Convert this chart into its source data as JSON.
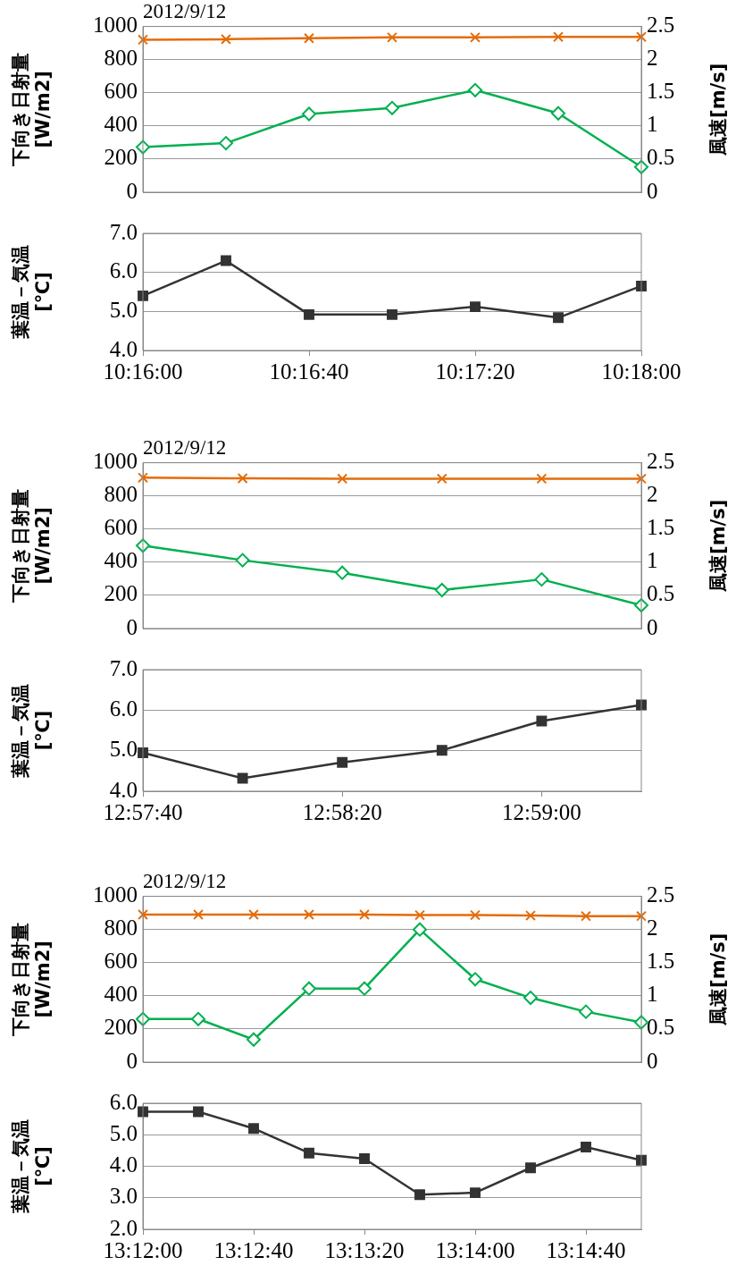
{
  "chart_data": [
    {
      "type": "line",
      "title": "2012/9/12",
      "ylabel": "下向き日射量\n[W/m2]",
      "y2label": "風速[m/s]",
      "categories": [
        null,
        null,
        null,
        null,
        null,
        null,
        null
      ],
      "ylim": [
        0,
        1000
      ],
      "yticks": [
        0,
        200,
        400,
        600,
        800,
        1000
      ],
      "y2lim": [
        0,
        2.5
      ],
      "y2ticks": [
        0,
        0.5,
        1,
        1.5,
        2,
        2.5
      ],
      "grid": "y",
      "tick_labels": "y",
      "series": [
        {
          "color": "#e46c0a",
          "marker": "cross",
          "values": [
            920,
            923,
            929,
            934,
            934,
            937,
            937
          ]
        },
        {
          "color": "#00b050",
          "marker": "diamond",
          "axis": "y2",
          "values": [
            0.68,
            0.74,
            1.18,
            1.27,
            1.54,
            1.19,
            0.38
          ]
        }
      ]
    },
    {
      "type": "line",
      "ylabel": "葉温－気温\n[℃]",
      "categories": [
        "10:16:00",
        null,
        "10:16:40",
        null,
        "10:17:20",
        null,
        "10:18:00"
      ],
      "ylim": [
        4,
        7
      ],
      "yticks": [
        {
          "value": 4,
          "label": "4.0"
        },
        {
          "value": 5,
          "label": "5.0"
        },
        {
          "value": 6,
          "label": "6.0"
        },
        {
          "value": 7,
          "label": "7.0"
        }
      ],
      "grid": "y",
      "series": [
        {
          "color": "#333333",
          "marker": "square",
          "values": [
            5.4,
            6.3,
            4.92,
            4.92,
            5.12,
            4.84,
            5.65
          ]
        }
      ]
    },
    {
      "type": "line",
      "title": "2012/9/12",
      "ylabel": "下向き日射量\n[W/m2]",
      "y2label": "風速[m/s]",
      "categories": [
        null,
        null,
        null,
        null,
        null,
        null
      ],
      "ylim": [
        0,
        1000
      ],
      "yticks": [
        0,
        200,
        400,
        600,
        800,
        1000
      ],
      "y2lim": [
        0,
        2.5
      ],
      "y2ticks": [
        0,
        0.5,
        1,
        1.5,
        2,
        2.5
      ],
      "grid": "y",
      "tick_labels": "y",
      "series": [
        {
          "color": "#e46c0a",
          "marker": "cross",
          "values": [
            910,
            906,
            904,
            904,
            904,
            904
          ]
        },
        {
          "color": "#00b050",
          "marker": "diamond",
          "axis": "y2",
          "values": [
            1.25,
            1.03,
            0.84,
            0.58,
            0.74,
            0.35
          ]
        }
      ]
    },
    {
      "type": "line",
      "ylabel": "葉温－気温\n[℃]",
      "categories": [
        "12:57:40",
        null,
        "12:58:20",
        null,
        "12:59:00",
        null
      ],
      "ylim": [
        4,
        7
      ],
      "yticks": [
        {
          "value": 4,
          "label": "4.0"
        },
        {
          "value": 5,
          "label": "5.0"
        },
        {
          "value": 6,
          "label": "6.0"
        },
        {
          "value": 7,
          "label": "7.0"
        }
      ],
      "grid": "y",
      "series": [
        {
          "color": "#333333",
          "marker": "square",
          "values": [
            4.95,
            4.32,
            4.71,
            5.01,
            5.73,
            6.13
          ]
        }
      ]
    },
    {
      "type": "line",
      "title": "2012/9/12",
      "ylabel": "下向き日射量\n[W/m2]",
      "y2label": "風速[m/s]",
      "categories": [
        null,
        null,
        null,
        null,
        null,
        null,
        null,
        null,
        null,
        null
      ],
      "ylim": [
        0,
        1000
      ],
      "yticks": [
        0,
        200,
        400,
        600,
        800,
        1000
      ],
      "y2lim": [
        0,
        2.5
      ],
      "y2ticks": [
        0,
        0.5,
        1,
        1.5,
        2,
        2.5
      ],
      "grid": "y",
      "tick_labels": "y",
      "series": [
        {
          "color": "#e46c0a",
          "marker": "cross",
          "values": [
            890,
            890,
            890,
            890,
            890,
            887,
            887,
            884,
            881,
            881
          ]
        },
        {
          "color": "#00b050",
          "marker": "diamond",
          "axis": "y2",
          "values": [
            0.65,
            0.65,
            0.34,
            1.11,
            1.11,
            2.0,
            1.25,
            0.97,
            0.76,
            0.6
          ]
        }
      ]
    },
    {
      "type": "line",
      "ylabel": "葉温－気温\n[℃]",
      "categories": [
        "13:12:00",
        null,
        "13:12:40",
        null,
        "13:13:20",
        null,
        "13:14:00",
        null,
        "13:14:40",
        null
      ],
      "ylim": [
        2,
        6
      ],
      "yticks": [
        {
          "value": 2,
          "label": "2.0"
        },
        {
          "value": 3,
          "label": "3.0"
        },
        {
          "value": 4,
          "label": "4.0"
        },
        {
          "value": 5,
          "label": "5.0"
        },
        {
          "value": 6,
          "label": "6.0"
        }
      ],
      "grid": "y",
      "series": [
        {
          "color": "#333333",
          "marker": "square",
          "values": [
            5.73,
            5.73,
            5.2,
            4.42,
            4.24,
            3.1,
            3.16,
            3.95,
            4.61,
            4.19
          ]
        }
      ]
    }
  ]
}
